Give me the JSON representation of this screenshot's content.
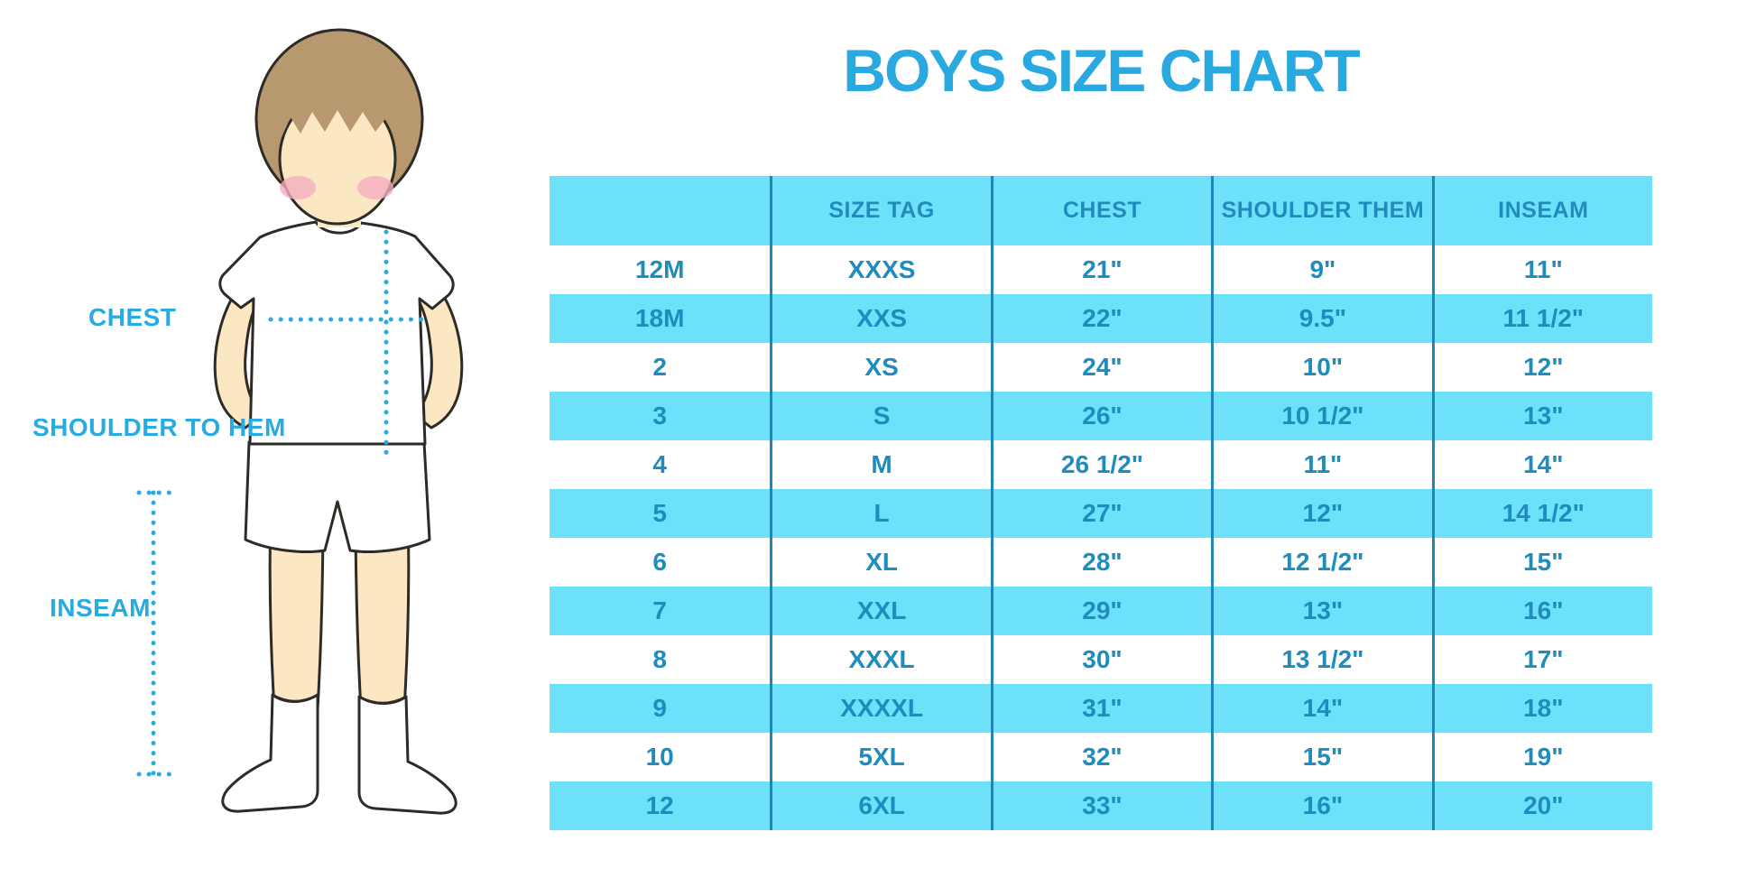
{
  "title": "BOYS SIZE CHART",
  "colors": {
    "title": "#29A9E0",
    "label": "#29ABE2",
    "row_blue": "#6EE1FA",
    "table_text": "#1F8CBE",
    "separator": "#1F86B8",
    "hair": "#B8986F",
    "skin": "#FBE7C2",
    "blush": "#F5AEC0"
  },
  "figure": {
    "labels": {
      "chest": "CHEST",
      "shoulder_to_hem": "SHOULDER TO HEM",
      "inseam": "INSEAM"
    }
  },
  "table": {
    "headers": [
      "",
      "SIZE TAG",
      "CHEST",
      "SHOULDER THEM",
      "INSEAM"
    ],
    "rows": [
      [
        "12M",
        "XXXS",
        "21\"",
        "9\"",
        "11\""
      ],
      [
        "18M",
        "XXS",
        "22\"",
        "9.5\"",
        "11 1/2\""
      ],
      [
        "2",
        "XS",
        "24\"",
        "10\"",
        "12\""
      ],
      [
        "3",
        "S",
        "26\"",
        "10 1/2\"",
        "13\""
      ],
      [
        "4",
        "M",
        "26 1/2\"",
        "11\"",
        "14\""
      ],
      [
        "5",
        "L",
        "27\"",
        "12\"",
        "14 1/2\""
      ],
      [
        "6",
        "XL",
        "28\"",
        "12 1/2\"",
        "15\""
      ],
      [
        "7",
        "XXL",
        "29\"",
        "13\"",
        "16\""
      ],
      [
        "8",
        "XXXL",
        "30\"",
        "13 1/2\"",
        "17\""
      ],
      [
        "9",
        "XXXXL",
        "31\"",
        "14\"",
        "18\""
      ],
      [
        "10",
        "5XL",
        "32\"",
        "15\"",
        "19\""
      ],
      [
        "12",
        "6XL",
        "33\"",
        "16\"",
        "20\""
      ]
    ]
  },
  "chart_data": {
    "type": "table",
    "title": "BOYS SIZE CHART",
    "columns": [
      "",
      "SIZE TAG",
      "CHEST",
      "SHOULDER THEM",
      "INSEAM"
    ],
    "rows": [
      [
        "12M",
        "XXXS",
        "21\"",
        "9\"",
        "11\""
      ],
      [
        "18M",
        "XXS",
        "22\"",
        "9.5\"",
        "11 1/2\""
      ],
      [
        "2",
        "XS",
        "24\"",
        "10\"",
        "12\""
      ],
      [
        "3",
        "S",
        "26\"",
        "10 1/2\"",
        "13\""
      ],
      [
        "4",
        "M",
        "26 1/2\"",
        "11\"",
        "14\""
      ],
      [
        "5",
        "L",
        "27\"",
        "12\"",
        "14 1/2\""
      ],
      [
        "6",
        "XL",
        "28\"",
        "12 1/2\"",
        "15\""
      ],
      [
        "7",
        "XXL",
        "29\"",
        "13\"",
        "16\""
      ],
      [
        "8",
        "XXXL",
        "30\"",
        "13 1/2\"",
        "17\""
      ],
      [
        "9",
        "XXXXL",
        "31\"",
        "14\"",
        "18\""
      ],
      [
        "10",
        "5XL",
        "32\"",
        "15\"",
        "19\""
      ],
      [
        "12",
        "6XL",
        "33\"",
        "16\"",
        "20\""
      ]
    ],
    "annotations": [
      "CHEST",
      "SHOULDER TO HEM",
      "INSEAM"
    ]
  }
}
